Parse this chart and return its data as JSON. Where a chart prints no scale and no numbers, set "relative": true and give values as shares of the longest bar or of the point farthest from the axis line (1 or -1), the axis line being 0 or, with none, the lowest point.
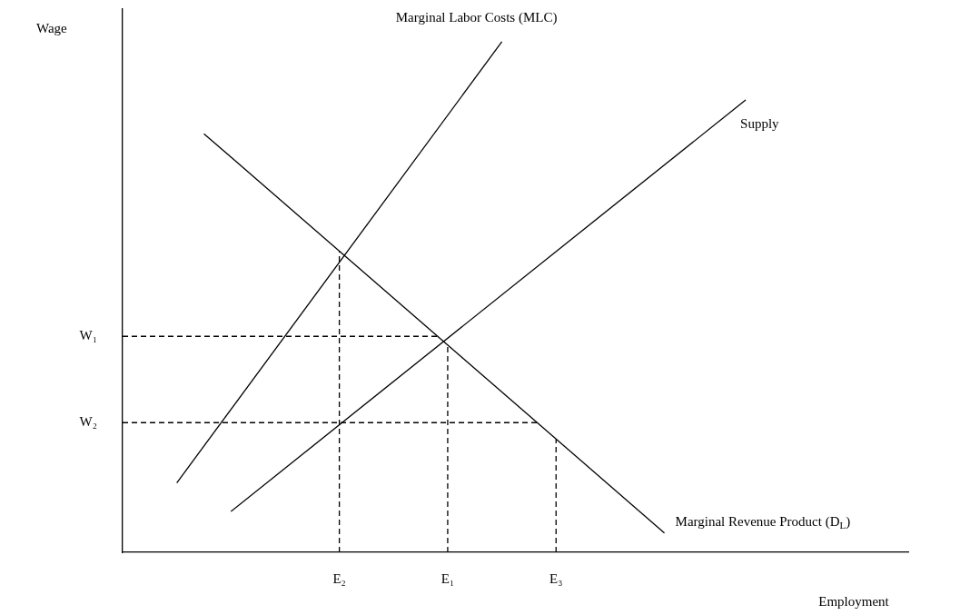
{
  "chart_data": {
    "type": "line",
    "relative": true,
    "xlabel": "Employment",
    "ylabel": "Wage",
    "legend": false,
    "marker": "none",
    "categories": [
      null,
      null,
      null,
      null,
      null,
      null,
      null,
      null,
      "E₂",
      null,
      null,
      null,
      "E₁",
      null,
      null,
      null,
      "E₃",
      null,
      null,
      null,
      null,
      null,
      null,
      null,
      null,
      null,
      null,
      null,
      null,
      null
    ],
    "series": [
      {
        "name": "Marginal Labor Costs (MLC)",
        "color": "#000000",
        "values": [
          null,
          null,
          0.136,
          null,
          null,
          null,
          null,
          null,
          null,
          null,
          null,
          null,
          null,
          null,
          1,
          null,
          null,
          null,
          null,
          null,
          null,
          null,
          null,
          null,
          null,
          null,
          null,
          null,
          null,
          null
        ]
      },
      {
        "name": "Supply",
        "color": "#000000",
        "values": [
          null,
          null,
          null,
          null,
          0.08,
          null,
          null,
          null,
          null,
          null,
          null,
          null,
          null,
          null,
          null,
          null,
          null,
          null,
          null,
          null,
          null,
          null,
          null,
          0.886,
          null,
          null,
          null,
          null,
          null,
          null
        ]
      },
      {
        "name": "Marginal Revenue Product (D$_{L}$)",
        "color": "#000000",
        "values": [
          null,
          null,
          null,
          0.82,
          null,
          null,
          null,
          null,
          null,
          null,
          null,
          null,
          null,
          null,
          null,
          null,
          null,
          null,
          null,
          null,
          0.038,
          null,
          null,
          null,
          null,
          null,
          null,
          null,
          null,
          null
        ]
      }
    ],
    "ref_lines": [
      {
        "axis": "y",
        "value": 0.423,
        "label": "W₁",
        "color": "#000000",
        "line_style": "dashed"
      },
      {
        "axis": "y",
        "value": 0.254,
        "label": "W₂",
        "color": "#000000",
        "line_style": "dashed"
      },
      {
        "axis": "x",
        "value": "E₂",
        "color": "#000000",
        "line_style": "dashed"
      },
      {
        "axis": "x",
        "value": "E₁",
        "color": "#000000",
        "line_style": "dashed"
      },
      {
        "axis": "x",
        "value": "E₃",
        "color": "#000000",
        "line_style": "dashed"
      }
    ]
  }
}
